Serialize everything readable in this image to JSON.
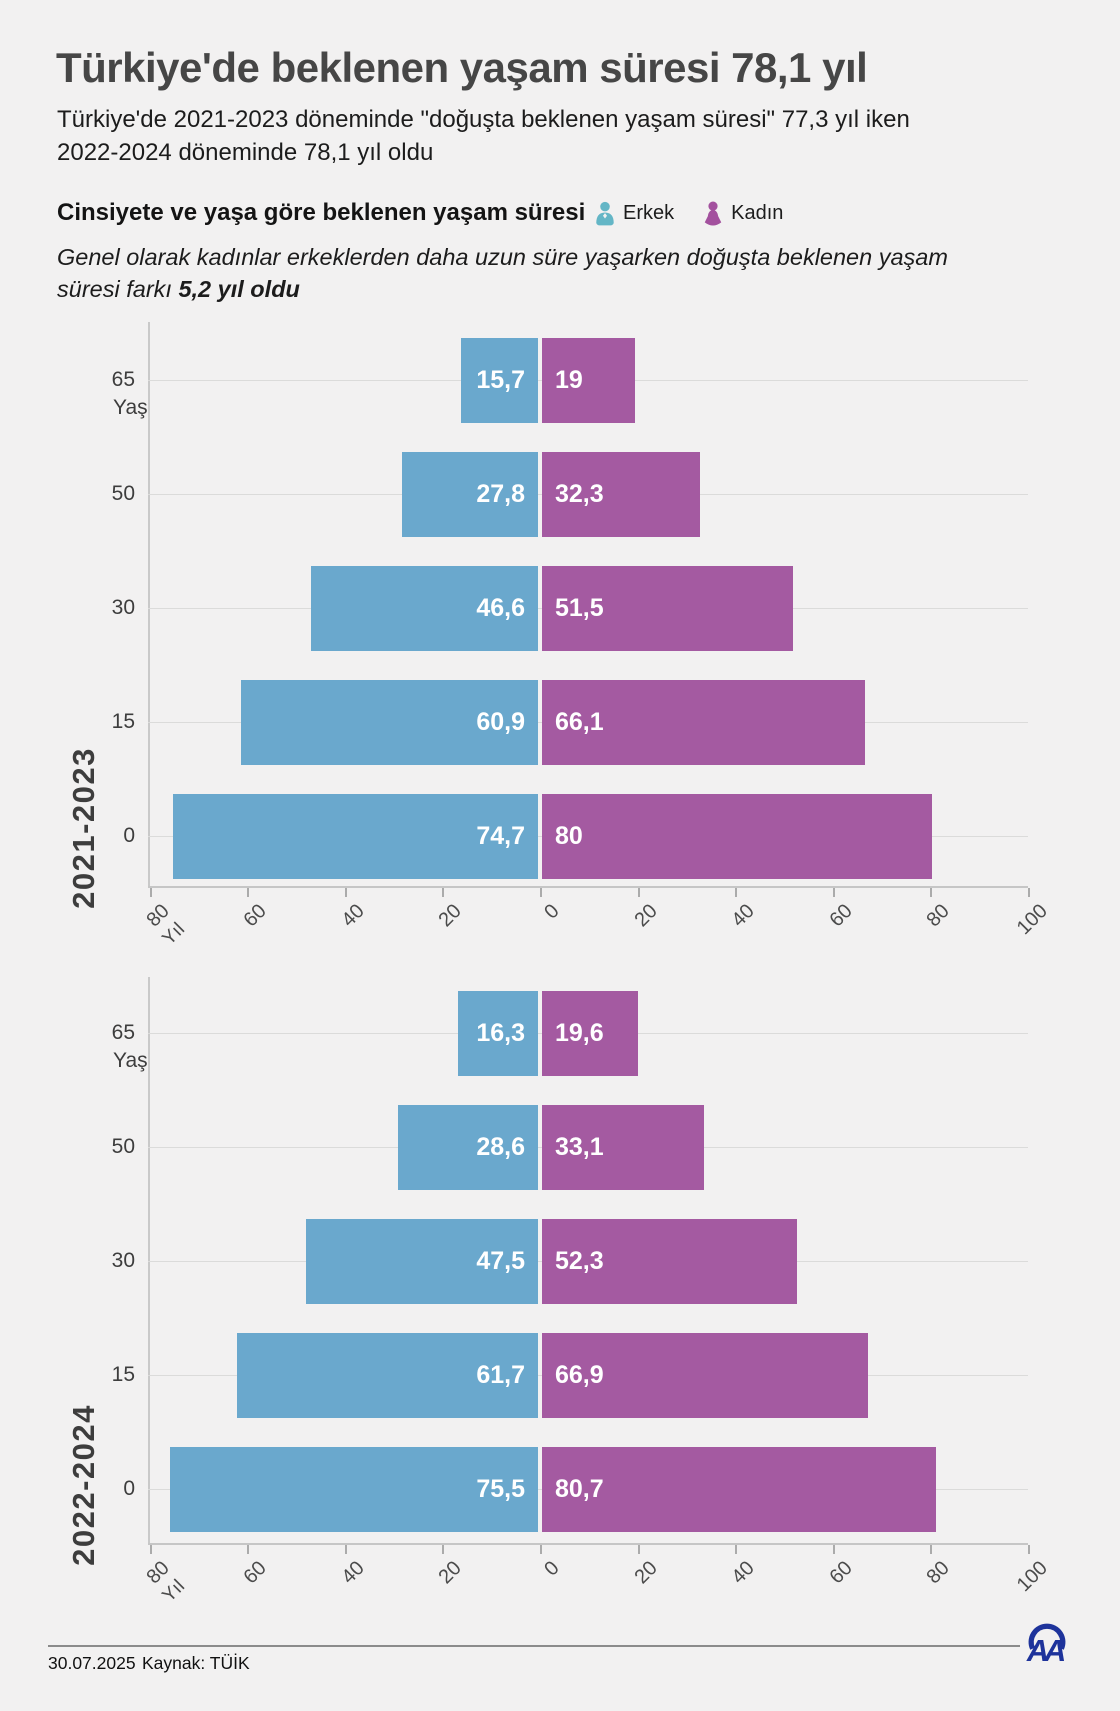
{
  "header": {
    "title": "Türkiye'de beklenen yaşam süresi 78,1 yıl",
    "subtitle_line1": "Türkiye'de 2021-2023 döneminde \"doğuşta beklenen yaşam süresi\" 77,3 yıl iken",
    "subtitle_line2": "2022-2024 döneminde 78,1 yıl oldu",
    "section_title": "Cinsiyete ve yaşa göre beklenen yaşam süresi",
    "note_line1": "Genel olarak kadınlar erkeklerden daha uzun süre yaşarken doğuşta beklenen yaşam",
    "note_line2_prefix": "süresi farkı ",
    "note_bold": "5,2 yıl oldu"
  },
  "legend": {
    "male_label": "Erkek",
    "female_label": "Kadın",
    "male_icon": "male-person-icon",
    "female_icon": "female-person-icon"
  },
  "colors": {
    "male_bar": "#6aa8cd",
    "female_bar": "#a45aa1",
    "male_icon": "#64b6c6",
    "female_icon": "#a3519e",
    "page_bg": "#f2f1f1",
    "logo_blue": "#1e339b"
  },
  "chart_data": [
    {
      "type": "bar",
      "title": "2021-2023",
      "orientation": "horizontal-pyramid",
      "ylabel": "Yaş",
      "xlabel": "Yıl",
      "categories": [
        "65",
        "50",
        "30",
        "15",
        "0"
      ],
      "series": [
        {
          "name": "Erkek",
          "values": [
            15.7,
            27.8,
            46.6,
            60.9,
            74.7
          ],
          "labels": [
            "15,7",
            "27,8",
            "46,6",
            "60,9",
            "74,7"
          ]
        },
        {
          "name": "Kadın",
          "values": [
            19,
            32.3,
            51.5,
            66.1,
            80
          ],
          "labels": [
            "19",
            "32,3",
            "51,5",
            "66,1",
            "80"
          ]
        }
      ],
      "x_tick_values": [
        -80,
        -60,
        -40,
        -20,
        0,
        20,
        40,
        60,
        80,
        100
      ],
      "x_tick_labels": [
        "80",
        "60",
        "40",
        "20",
        "0",
        "20",
        "40",
        "60",
        "80",
        "100"
      ],
      "xlim": [
        -80,
        100
      ],
      "grid": "horizontal",
      "legend_position": "top"
    },
    {
      "type": "bar",
      "title": "2022-2024",
      "orientation": "horizontal-pyramid",
      "ylabel": "Yaş",
      "xlabel": "Yıl",
      "categories": [
        "65",
        "50",
        "30",
        "15",
        "0"
      ],
      "series": [
        {
          "name": "Erkek",
          "values": [
            16.3,
            28.6,
            47.5,
            61.7,
            75.5
          ],
          "labels": [
            "16,3",
            "28,6",
            "47,5",
            "61,7",
            "75,5"
          ]
        },
        {
          "name": "Kadın",
          "values": [
            19.6,
            33.1,
            52.3,
            66.9,
            80.7
          ],
          "labels": [
            "19,6",
            "33,1",
            "52,3",
            "66,9",
            "80,7"
          ]
        }
      ],
      "x_tick_values": [
        -80,
        -60,
        -40,
        -20,
        0,
        20,
        40,
        60,
        80,
        100
      ],
      "x_tick_labels": [
        "80",
        "60",
        "40",
        "20",
        "0",
        "20",
        "40",
        "60",
        "80",
        "100"
      ],
      "xlim": [
        -80,
        100
      ],
      "grid": "horizontal",
      "legend_position": "top"
    }
  ],
  "footer": {
    "date": "30.07.2025",
    "source": "Kaynak: TÜİK",
    "logo": "AA"
  }
}
